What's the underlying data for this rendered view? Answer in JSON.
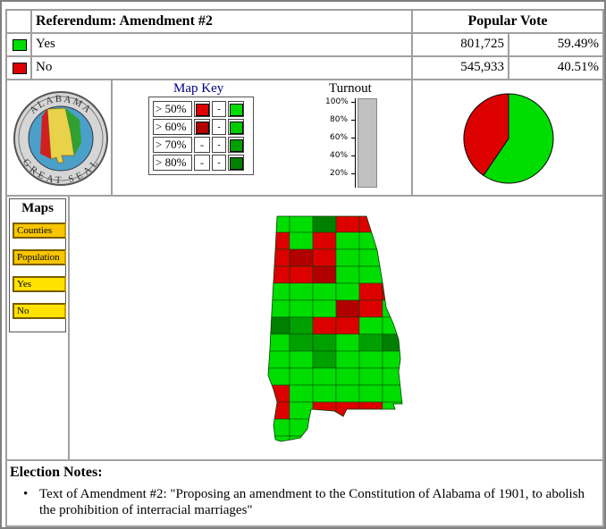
{
  "header": {
    "title": "Referendum: Amendment #2",
    "popular_vote_label": "Popular Vote"
  },
  "results": [
    {
      "label": "Yes",
      "votes": "801,725",
      "percent": "59.49%",
      "color": "#00dd00"
    },
    {
      "label": "No",
      "votes": "545,933",
      "percent": "40.51%",
      "color": "#dd0000"
    }
  ],
  "seal": {
    "text_top": "ALABAMA",
    "text_bottom": "GREAT SEAL"
  },
  "map_key": {
    "title": "Map Key",
    "rows": [
      {
        "label": "> 50%",
        "no_color": "#dd0000",
        "yes_color": "#00dd00"
      },
      {
        "label": "> 60%",
        "no_color": "#b00000",
        "yes_color": "#00cc00"
      },
      {
        "label": "> 70%",
        "no_color": "-",
        "yes_color": "#00a000"
      },
      {
        "label": "> 80%",
        "no_color": "-",
        "yes_color": "#008000"
      }
    ],
    "dash": "-"
  },
  "turnout": {
    "title": "Turnout",
    "ticks": [
      "100%",
      "80%",
      "60%",
      "40%",
      "20%"
    ]
  },
  "pie": {
    "yes_fraction": 0.5949,
    "no_fraction": 0.4051
  },
  "maps": {
    "title": "Maps",
    "buttons": [
      "Counties",
      "Population",
      "Yes",
      "No"
    ]
  },
  "notes": {
    "title": "Election Notes:",
    "items": [
      "Text of Amendment #2: \"Proposing an amendment to the Constitution of Alabama of 1901, to abolish the prohibition of interracial marriages\""
    ]
  }
}
